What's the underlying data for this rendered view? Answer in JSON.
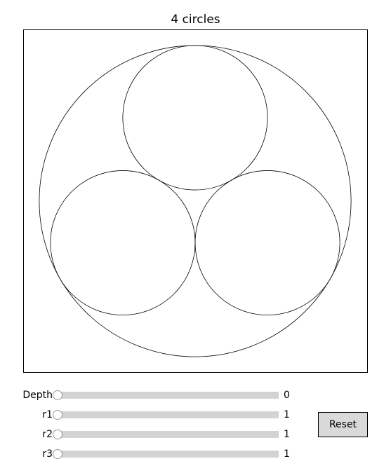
{
  "plot": {
    "title": "4 circles"
  },
  "sliders": [
    {
      "label": "Depth",
      "value_text": "0",
      "value": 0,
      "min": 0,
      "max": 5
    },
    {
      "label": "r1",
      "value_text": "1",
      "value": 1,
      "min": 1,
      "max": 10
    },
    {
      "label": "r2",
      "value_text": "1",
      "value": 1,
      "min": 1,
      "max": 10
    },
    {
      "label": "r3",
      "value_text": "1",
      "value": 1,
      "min": 1,
      "max": 10
    }
  ],
  "reset_label": "Reset",
  "circles": [
    {
      "name": "outer",
      "cx": 0,
      "cy": 0,
      "r": 2.1547
    },
    {
      "name": "top",
      "cx": 0,
      "cy": -1.1547,
      "r": 1
    },
    {
      "name": "left",
      "cx": -1,
      "cy": 0.5774,
      "r": 1
    },
    {
      "name": "right",
      "cx": 1,
      "cy": 0.5774,
      "r": 1
    }
  ],
  "colors": {
    "stroke": "#000000",
    "track": "#d3d3d3",
    "button": "#d9d9d9"
  }
}
